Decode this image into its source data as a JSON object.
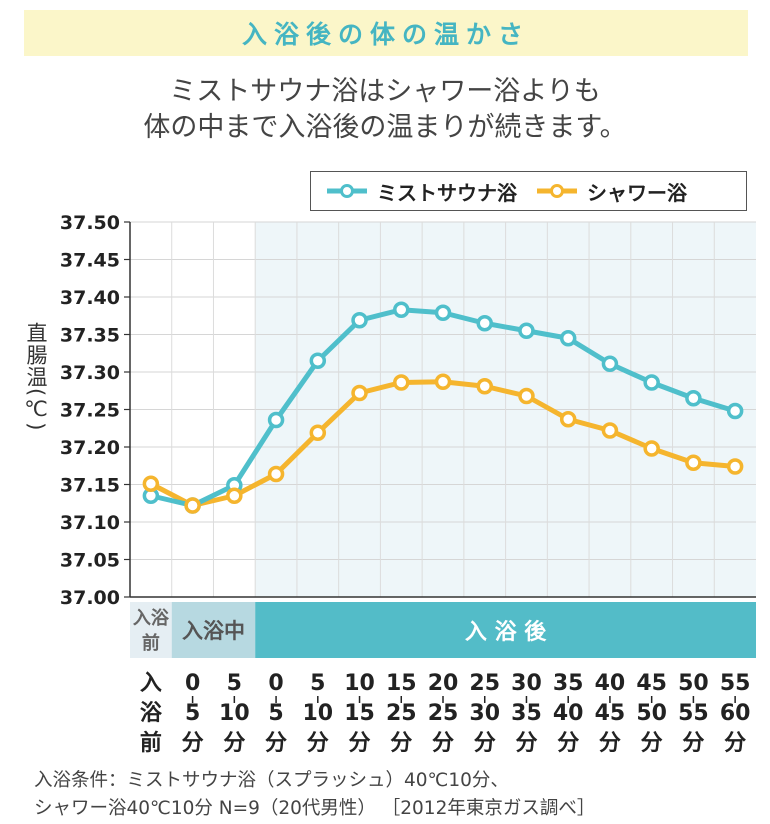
{
  "header": {
    "title": "入浴後の体の温かさ",
    "subtitle_line1": "ミストサウナ浴はシャワー浴よりも",
    "subtitle_line2": "体の中まで入浴後の温まりが続きます。"
  },
  "colors": {
    "mist": "#4fbfcb",
    "shower": "#f5b52e",
    "title": "#45b5c2",
    "band": "#fbf6c9",
    "after_bg": "#eef6f9"
  },
  "legend": {
    "mist": "ミストサウナ浴",
    "shower": "シャワー浴"
  },
  "chart_data": {
    "type": "line",
    "ylabel": "直腸温(℃)",
    "ylim": [
      37.0,
      37.5
    ],
    "yticks": [
      "37.50",
      "37.45",
      "37.40",
      "37.35",
      "37.30",
      "37.25",
      "37.20",
      "37.15",
      "37.10",
      "37.05",
      "37.00"
    ],
    "categories": [
      [
        "入",
        "浴",
        "前"
      ],
      [
        "0",
        "5",
        "分"
      ],
      [
        "5",
        "10",
        "分"
      ],
      [
        "0",
        "5",
        "分"
      ],
      [
        "5",
        "10",
        "分"
      ],
      [
        "10",
        "15",
        "分"
      ],
      [
        "15",
        "25",
        "分"
      ],
      [
        "20",
        "25",
        "分"
      ],
      [
        "25",
        "30",
        "分"
      ],
      [
        "30",
        "35",
        "分"
      ],
      [
        "35",
        "40",
        "分"
      ],
      [
        "40",
        "45",
        "分"
      ],
      [
        "45",
        "50",
        "分"
      ],
      [
        "50",
        "55",
        "分"
      ],
      [
        "55",
        "60",
        "分"
      ]
    ],
    "phases": [
      "入浴前",
      "入浴中",
      "入 浴 後"
    ],
    "series": [
      {
        "name": "ミストサウナ浴",
        "values": [
          37.135,
          37.122,
          37.149,
          37.236,
          37.315,
          37.369,
          37.383,
          37.379,
          37.365,
          37.355,
          37.345,
          37.311,
          37.286,
          37.265,
          37.248
        ]
      },
      {
        "name": "シャワー浴",
        "values": [
          37.151,
          37.122,
          37.135,
          37.164,
          37.219,
          37.272,
          37.286,
          37.287,
          37.281,
          37.268,
          37.237,
          37.222,
          37.198,
          37.179,
          37.174
        ]
      }
    ]
  },
  "footnote": {
    "line1": "入浴条件：ミストサウナ浴（スプラッシュ）40℃10分、",
    "line2": "シャワー浴40℃10分 N=9（20代男性） ［2012年東京ガス調べ］"
  }
}
